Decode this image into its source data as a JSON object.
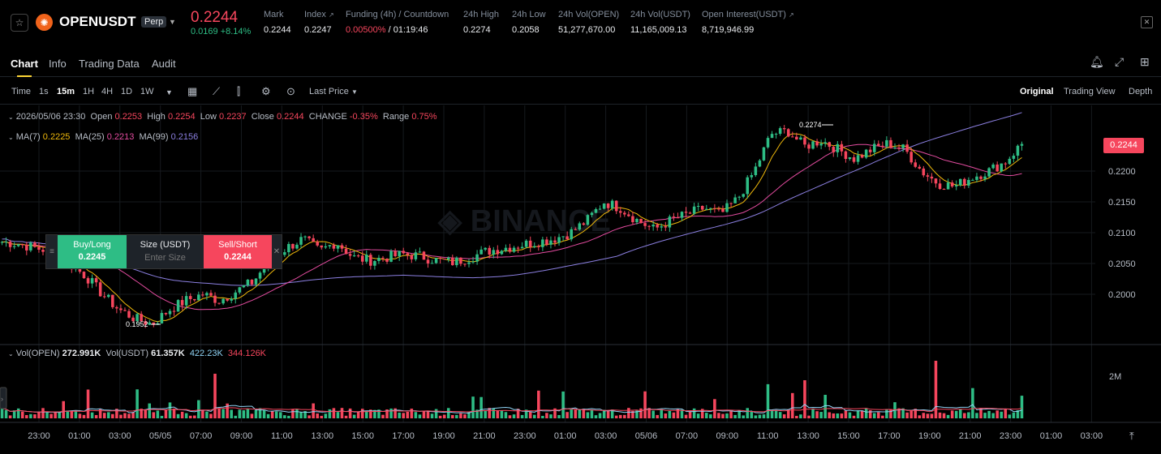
{
  "header": {
    "symbol": "OPENUSDT",
    "contract_type": "Perp",
    "last_price": "0.2244",
    "change": "0.0169 +8.14%",
    "stats": [
      {
        "label": "Mark",
        "value": "0.2244"
      },
      {
        "label": "Index",
        "value": "0.2247"
      },
      {
        "label": "Funding (4h) / Countdown",
        "value_rate": "0.00500%",
        "value_countdown": " / 01:19:46"
      },
      {
        "label": "24h High",
        "value": "0.2274"
      },
      {
        "label": "24h Low",
        "value": "0.2058"
      },
      {
        "label": "24h Vol(OPEN)",
        "value": "51,277,670.00"
      },
      {
        "label": "24h Vol(USDT)",
        "value": "11,165,009.13"
      },
      {
        "label": "Open Interest(USDT)",
        "value": "8,719,946.99"
      }
    ]
  },
  "tabs": [
    "Chart",
    "Info",
    "Trading Data",
    "Audit"
  ],
  "toolbar": {
    "time_label": "Time",
    "intervals": [
      "1s",
      "15m",
      "1H",
      "4H",
      "1D",
      "1W"
    ],
    "selected_interval": "15m",
    "price_type": "Last Price",
    "views": [
      "Original",
      "Trading View",
      "Depth"
    ],
    "selected_view": "Original"
  },
  "legend": {
    "date": "2026/05/06 23:30",
    "open_label": "Open",
    "open": "0.2253",
    "high_label": "High",
    "high": "0.2254",
    "low_label": "Low",
    "low": "0.2237",
    "close_label": "Close",
    "close": "0.2244",
    "change_label": "CHANGE",
    "change": "-0.35%",
    "range_label": "Range",
    "range": "0.75%",
    "ma7_label": "MA(7)",
    "ma7": "0.2225",
    "ma25_label": "MA(25)",
    "ma25": "0.2213",
    "ma99_label": "MA(99)",
    "ma99": "0.2156",
    "vol_open_label": "Vol(OPEN)",
    "vol_open": "272.991K",
    "vol_usdt_label": "Vol(USDT)",
    "vol_usdt": "61.357K",
    "vol_ma1": "422.23K",
    "vol_ma2": "344.126K"
  },
  "quick_trade": {
    "buy_label": "Buy/Long",
    "buy_price": "0.2245",
    "size_label": "Size (USDT)",
    "size_placeholder": "Enter Size",
    "sell_label": "Sell/Short",
    "sell_price": "0.2244"
  },
  "chart_data": {
    "type": "candlestick",
    "price_axis_ticks": [
      "0.2200",
      "0.2150",
      "0.2100",
      "0.2050",
      "0.2000"
    ],
    "price_ticks_values": [
      0.22,
      0.215,
      0.21,
      0.205,
      0.2
    ],
    "volume_axis_tick": "2M",
    "time_axis_ticks": [
      "23:00",
      "01:00",
      "03:00",
      "05/05",
      "07:00",
      "09:00",
      "11:00",
      "13:00",
      "15:00",
      "17:00",
      "19:00",
      "21:00",
      "23:00",
      "01:00",
      "03:00",
      "05/06",
      "07:00",
      "09:00",
      "11:00",
      "13:00",
      "15:00",
      "17:00",
      "19:00",
      "21:00",
      "23:00",
      "01:00",
      "03:00"
    ],
    "current_price": "0.2244",
    "high_marker": "0.2274",
    "low_marker": "0.1952",
    "close_path": [
      0.2085,
      0.2082,
      0.2075,
      0.207,
      0.205,
      0.203,
      0.2,
      0.1975,
      0.196,
      0.1952,
      0.1975,
      0.199,
      0.2,
      0.199,
      0.2005,
      0.202,
      0.2055,
      0.2075,
      0.209,
      0.207,
      0.2085,
      0.206,
      0.2055,
      0.206,
      0.2065,
      0.2062,
      0.2055,
      0.2052,
      0.206,
      0.207,
      0.2075,
      0.208,
      0.2085,
      0.209,
      0.21,
      0.212,
      0.215,
      0.214,
      0.212,
      0.2105,
      0.212,
      0.213,
      0.214,
      0.213,
      0.2155,
      0.22,
      0.226,
      0.2265,
      0.224,
      0.225,
      0.2235,
      0.222,
      0.2235,
      0.2245,
      0.2235,
      0.22,
      0.218,
      0.2175,
      0.219,
      0.22,
      0.2215,
      0.2244
    ],
    "colors": {
      "up": "#2ebd85",
      "down": "#f6465d",
      "ma7": "#f0b90b",
      "ma25": "#e44ca0",
      "ma99": "#8b7fe0"
    }
  }
}
